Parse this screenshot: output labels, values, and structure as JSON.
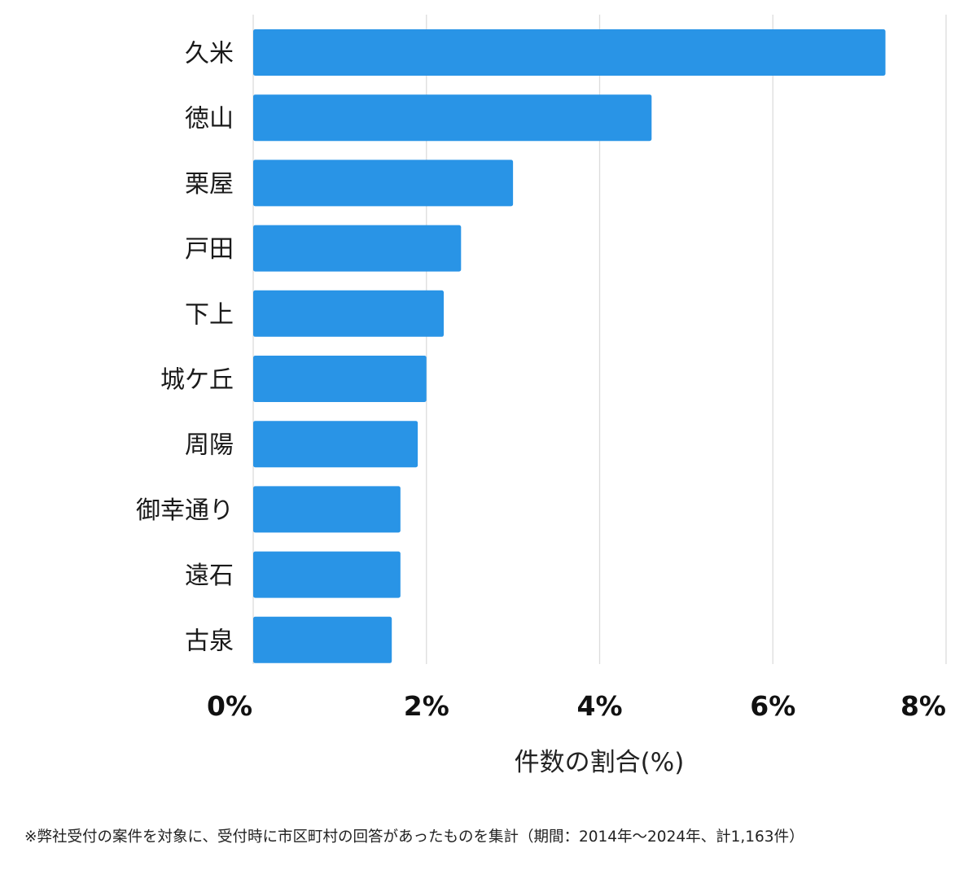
{
  "chart_data": {
    "type": "bar",
    "orientation": "horizontal",
    "categories": [
      "久米",
      "徳山",
      "栗屋",
      "戸田",
      "下上",
      "城ケ丘",
      "周陽",
      "御幸通り",
      "遠石",
      "古泉"
    ],
    "values": [
      7.3,
      4.6,
      3.0,
      2.4,
      2.2,
      2.0,
      1.9,
      1.7,
      1.7,
      1.6
    ],
    "xlim": [
      0,
      8
    ],
    "xticks": [
      0,
      2,
      4,
      6,
      8
    ],
    "tick_labels": [
      "0%",
      "2%",
      "4%",
      "6%",
      "8%"
    ],
    "xlabel": "件数の割合(%)",
    "ylabel": "",
    "bar_color": "#2994e6",
    "grid": true
  },
  "footnote": "※弊社受付の案件を対象に、受付時に市区町村の回答があったものを集計（期間：2014年～2024年、計1,163件）"
}
